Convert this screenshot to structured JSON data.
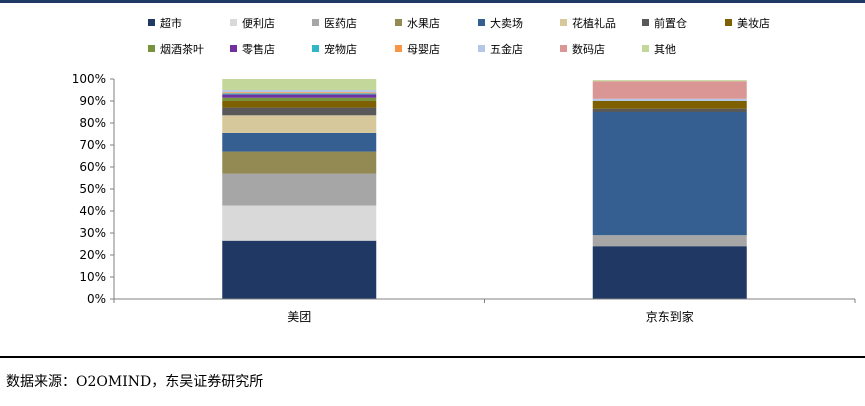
{
  "chart_data": {
    "type": "bar",
    "stacked": true,
    "categories": [
      "美团",
      "京东到家"
    ],
    "y_ticks": [
      "0%",
      "10%",
      "20%",
      "30%",
      "40%",
      "50%",
      "60%",
      "70%",
      "80%",
      "90%",
      "100%"
    ],
    "ylim": [
      0,
      100
    ],
    "grid": false,
    "legend_position": "top",
    "series": [
      {
        "name": "超市",
        "color": "#1f3864",
        "values": [
          26.5,
          24
        ]
      },
      {
        "name": "便利店",
        "color": "#d9d9d9",
        "values": [
          16,
          0
        ]
      },
      {
        "name": "医药店",
        "color": "#a6a6a6",
        "values": [
          14.5,
          5
        ]
      },
      {
        "name": "水果店",
        "color": "#938953",
        "values": [
          10,
          0
        ]
      },
      {
        "name": "大卖场",
        "color": "#365f91",
        "values": [
          8.5,
          56
        ]
      },
      {
        "name": "花植礼品",
        "color": "#d6c89b",
        "values": [
          8,
          0
        ]
      },
      {
        "name": "前置仓",
        "color": "#595959",
        "values": [
          3.5,
          1.5
        ]
      },
      {
        "name": "美妆店",
        "color": "#7f6000",
        "values": [
          3,
          3.5
        ]
      },
      {
        "name": "烟酒茶叶",
        "color": "#77933c",
        "values": [
          1.5,
          0
        ]
      },
      {
        "name": "零售店",
        "color": "#7030a0",
        "values": [
          1.5,
          0
        ]
      },
      {
        "name": "宠物店",
        "color": "#31b6c8",
        "values": [
          0.5,
          0
        ]
      },
      {
        "name": "母婴店",
        "color": "#f79646",
        "values": [
          0.5,
          0
        ]
      },
      {
        "name": "五金店",
        "color": "#b4c7e7",
        "values": [
          1,
          1
        ]
      },
      {
        "name": "数码店",
        "color": "#d99694",
        "values": [
          0,
          8
        ]
      },
      {
        "name": "其他",
        "color": "#c4d79b",
        "values": [
          5,
          0.5
        ]
      }
    ]
  },
  "page": {
    "source": "数据来源：O2OMIND，东吴证券研究所"
  }
}
